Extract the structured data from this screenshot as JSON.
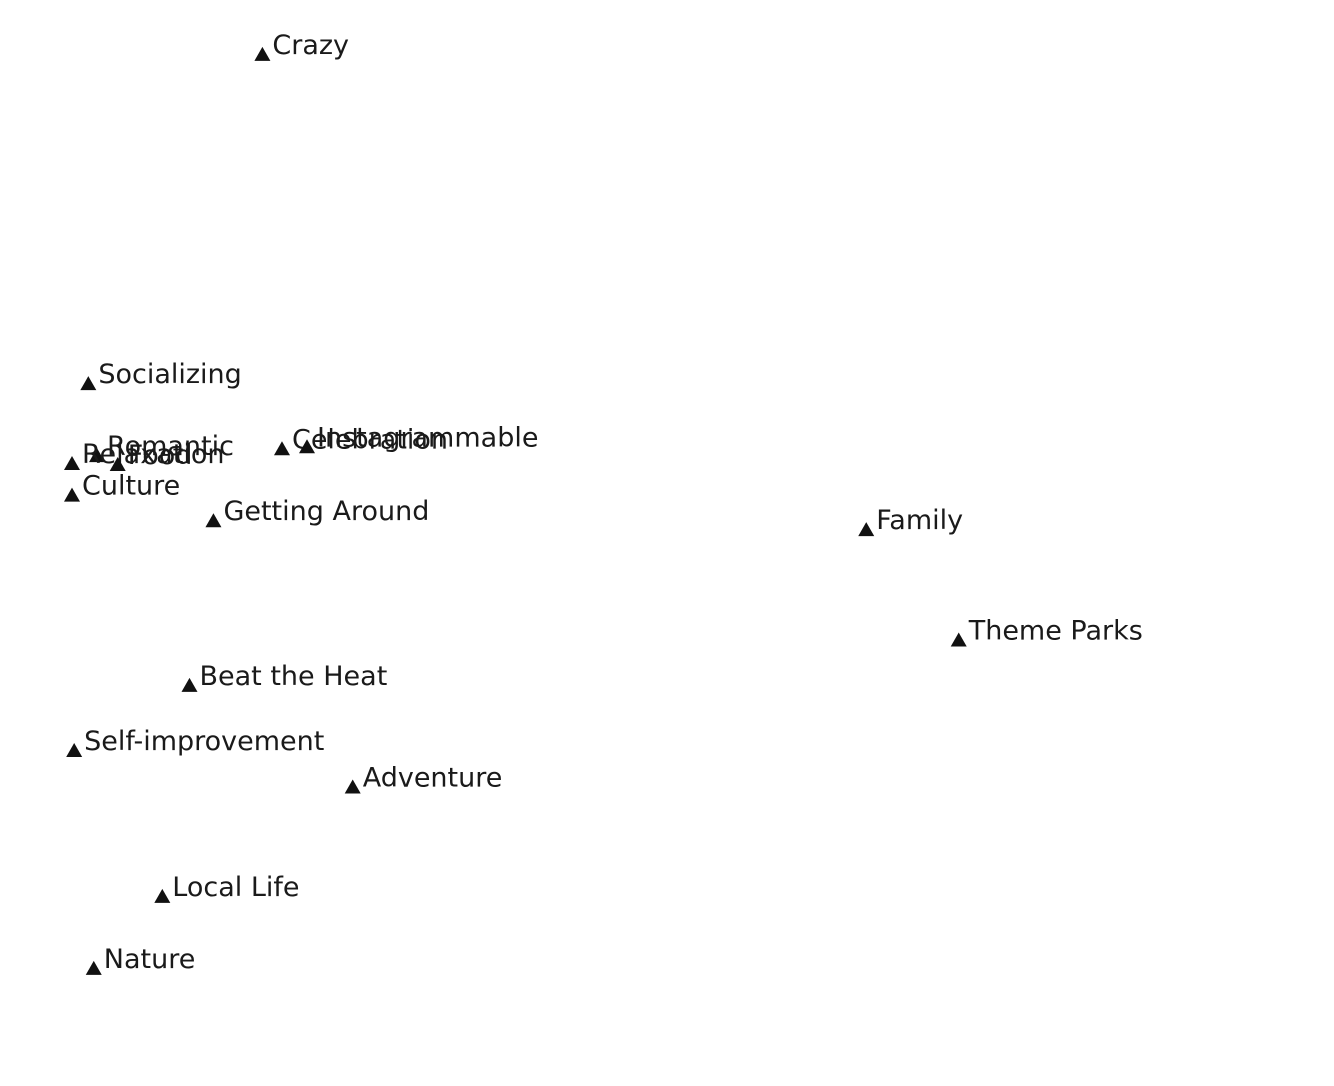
{
  "chart_data": {
    "type": "scatter",
    "title": "",
    "xlabel": "",
    "ylabel": "",
    "axes_visible": false,
    "grid": false,
    "marker": "triangle-up",
    "marker_color": "#111111",
    "text_color": "#1a1a1a",
    "xlim": [
      0,
      100
    ],
    "ylim": [
      0,
      100
    ],
    "points": [
      {
        "label": "Crazy",
        "x": 17.5,
        "y": 99.0
      },
      {
        "label": "Socializing",
        "x": 1.5,
        "y": 65.6
      },
      {
        "label": "Celebration",
        "x": 19.3,
        "y": 59.0
      },
      {
        "label": "Instagrammable",
        "x": 21.6,
        "y": 59.2
      },
      {
        "label": "Romantic",
        "x": 2.3,
        "y": 58.3
      },
      {
        "label": "Relaxation",
        "x": 0.0,
        "y": 57.5
      },
      {
        "label": "Food",
        "x": 4.2,
        "y": 57.4
      },
      {
        "label": "Culture",
        "x": 0.0,
        "y": 54.3
      },
      {
        "label": "Getting Around",
        "x": 13.0,
        "y": 51.7
      },
      {
        "label": "Family",
        "x": 73.0,
        "y": 50.8
      },
      {
        "label": "Theme Parks",
        "x": 81.5,
        "y": 39.6
      },
      {
        "label": "Beat the Heat",
        "x": 10.8,
        "y": 35.0
      },
      {
        "label": "Self-improvement",
        "x": 0.2,
        "y": 28.4
      },
      {
        "label": "Adventure",
        "x": 25.8,
        "y": 24.7
      },
      {
        "label": "Local Life",
        "x": 8.3,
        "y": 13.6
      },
      {
        "label": "Nature",
        "x": 2.0,
        "y": 6.3
      }
    ]
  }
}
